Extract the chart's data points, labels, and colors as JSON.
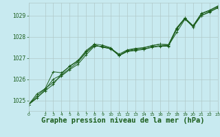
{
  "background_color": "#c8eaf0",
  "plot_bg_color": "#c8eaf0",
  "grid_color": "#b0c8c8",
  "line_color": "#1a5c1a",
  "title": "Graphe pression niveau de la mer (hPa)",
  "title_fontsize": 7.5,
  "xlim": [
    0,
    23
  ],
  "ylim": [
    1024.5,
    1029.6
  ],
  "yticks": [
    1025,
    1026,
    1027,
    1028,
    1029
  ],
  "xticks": [
    0,
    2,
    3,
    4,
    5,
    6,
    7,
    8,
    9,
    10,
    11,
    12,
    13,
    14,
    15,
    16,
    17,
    18,
    19,
    20,
    21,
    22,
    23
  ],
  "series": [
    [
      0,
      1024.8,
      1,
      1025.2,
      2,
      1025.55,
      3,
      1025.85,
      4,
      1026.15,
      5,
      1026.45,
      6,
      1026.7,
      7,
      1027.15,
      8,
      1027.55,
      9,
      1027.55,
      10,
      1027.45,
      11,
      1027.1,
      12,
      1027.3,
      13,
      1027.35,
      14,
      1027.4,
      15,
      1027.5,
      16,
      1027.55,
      17,
      1027.55,
      18,
      1028.35,
      19,
      1028.85,
      20,
      1028.45,
      21,
      1029.0,
      22,
      1029.15,
      23,
      1029.38
    ],
    [
      0,
      1024.8,
      1,
      1025.1,
      2,
      1025.5,
      3,
      1026.0,
      4,
      1026.2,
      5,
      1026.5,
      6,
      1026.8,
      7,
      1027.25,
      8,
      1027.58,
      9,
      1027.52,
      10,
      1027.42,
      11,
      1027.12,
      12,
      1027.32,
      13,
      1027.38,
      14,
      1027.42,
      15,
      1027.52,
      16,
      1027.58,
      17,
      1027.58,
      18,
      1028.2,
      19,
      1028.82,
      20,
      1028.5,
      21,
      1029.0,
      22,
      1029.18,
      23,
      1029.35
    ],
    [
      0,
      1024.8,
      1,
      1025.3,
      2,
      1025.55,
      3,
      1026.35,
      4,
      1026.3,
      5,
      1026.6,
      6,
      1026.85,
      7,
      1027.3,
      8,
      1027.62,
      9,
      1027.5,
      10,
      1027.44,
      11,
      1027.18,
      12,
      1027.38,
      13,
      1027.45,
      14,
      1027.48,
      15,
      1027.58,
      16,
      1027.65,
      17,
      1027.62,
      18,
      1028.38,
      19,
      1028.88,
      20,
      1028.5,
      21,
      1029.08,
      22,
      1029.22,
      23,
      1029.42
    ],
    [
      0,
      1024.8,
      2,
      1025.45,
      3,
      1025.75,
      4,
      1026.25,
      5,
      1026.62,
      6,
      1026.88,
      7,
      1027.35,
      8,
      1027.65,
      9,
      1027.6,
      10,
      1027.48,
      11,
      1027.12,
      12,
      1027.35,
      13,
      1027.42,
      14,
      1027.48,
      15,
      1027.58,
      16,
      1027.65,
      17,
      1027.62,
      18,
      1028.42,
      19,
      1028.88,
      20,
      1028.52,
      21,
      1029.1,
      22,
      1029.25,
      23,
      1029.45
    ]
  ]
}
